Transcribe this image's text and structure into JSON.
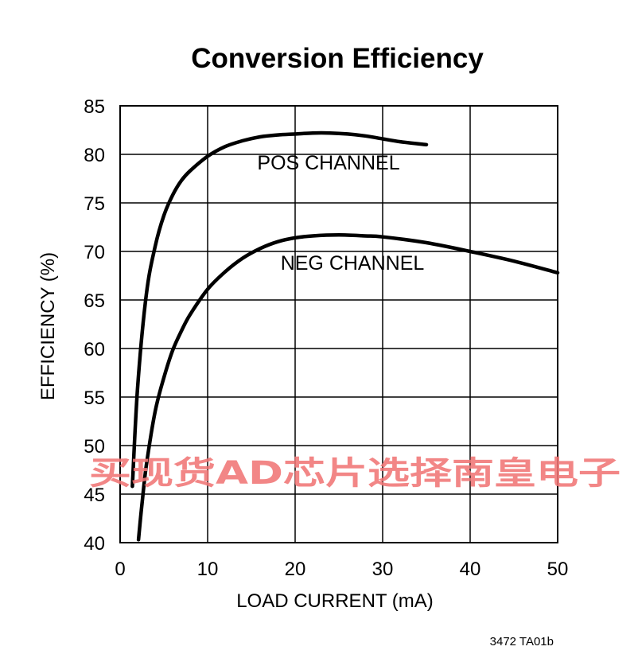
{
  "chart_data": {
    "type": "line",
    "title": "Conversion Efficiency",
    "xlabel": "LOAD CURRENT (mA)",
    "ylabel": "EFFICIENCY (%)",
    "xlim": [
      0,
      50
    ],
    "ylim": [
      40,
      85
    ],
    "x_ticks": [
      "0",
      "10",
      "20",
      "30",
      "40",
      "50"
    ],
    "y_ticks": [
      "40",
      "45",
      "50",
      "55",
      "60",
      "65",
      "70",
      "75",
      "80",
      "85"
    ],
    "grid": true,
    "series": [
      {
        "name": "POS CHANNEL",
        "x": [
          1.4,
          2,
          3,
          4,
          5,
          6,
          7,
          8,
          10,
          12,
          14,
          16,
          18,
          20,
          22,
          24,
          26,
          28,
          30,
          32,
          35
        ],
        "y": [
          45.8,
          56,
          65.6,
          70.5,
          73.7,
          75.8,
          77.3,
          78.3,
          79.8,
          80.8,
          81.4,
          81.8,
          82.0,
          82.1,
          82.2,
          82.2,
          82.1,
          81.9,
          81.6,
          81.3,
          81.0
        ]
      },
      {
        "name": "NEG CHANNEL",
        "x": [
          2.1,
          2.5,
          3,
          4,
          5,
          6,
          7,
          8,
          10,
          12,
          14,
          16,
          18,
          20,
          22,
          25,
          28,
          30,
          35,
          40,
          45,
          50
        ],
        "y": [
          40.3,
          44,
          48,
          53.5,
          57,
          59.8,
          61.8,
          63.5,
          66.1,
          67.9,
          69.3,
          70.3,
          71.0,
          71.4,
          71.6,
          71.7,
          71.6,
          71.5,
          70.9,
          70.0,
          69.0,
          67.8
        ]
      }
    ],
    "annotations": [
      "POS CHANNEL",
      "NEG CHANNEL"
    ],
    "figure_id": "3472 TA01b"
  },
  "watermark": {
    "text": "买现货AD芯片选择南皇电子",
    "color": "#f07575"
  }
}
